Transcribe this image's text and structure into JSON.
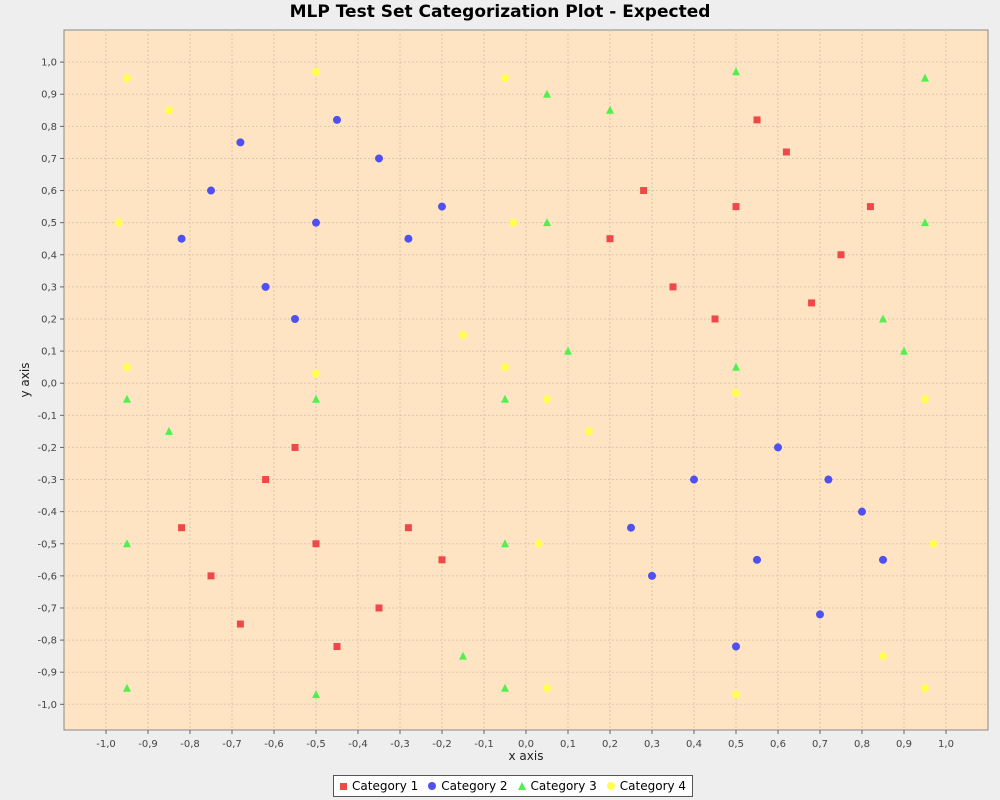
{
  "chart_data": {
    "type": "scatter",
    "title": "MLP Test Set Categorization Plot - Expected",
    "xlabel": "x axis",
    "ylabel": "y axis",
    "xlim": [
      -1.1,
      1.1
    ],
    "ylim": [
      -1.08,
      1.1
    ],
    "xticks": [
      -1.0,
      -0.9,
      -0.8,
      -0.7,
      -0.6,
      -0.5,
      -0.4,
      -0.3,
      -0.2,
      -0.1,
      0.0,
      0.1,
      0.2,
      0.3,
      0.4,
      0.5,
      0.6,
      0.7,
      0.8,
      0.9,
      1.0
    ],
    "yticks": [
      -1.0,
      -0.9,
      -0.8,
      -0.7,
      -0.6,
      -0.5,
      -0.4,
      -0.3,
      -0.2,
      -0.1,
      0.0,
      0.1,
      0.2,
      0.3,
      0.4,
      0.5,
      0.6,
      0.7,
      0.8,
      0.9,
      1.0
    ],
    "xtick_labels": [
      "-1,0",
      "-0,9",
      "-0,8",
      "-0,7",
      "-0,6",
      "-0,5",
      "-0,4",
      "-0,3",
      "-0,2",
      "-0,1",
      "0,0",
      "0,1",
      "0,2",
      "0,3",
      "0,4",
      "0,5",
      "0,6",
      "0,7",
      "0,8",
      "0,9",
      "1,0"
    ],
    "ytick_labels": [
      "-1,0",
      "-0,9",
      "-0,8",
      "-0,7",
      "-0,6",
      "-0,5",
      "-0,4",
      "-0,3",
      "-0,2",
      "-0,1",
      "0,0",
      "0,1",
      "0,2",
      "0,3",
      "0,4",
      "0,5",
      "0,6",
      "0,7",
      "0,8",
      "0,9",
      "1,0"
    ],
    "grid": true,
    "legend_position": "bottom",
    "plot_background": "#ffe4c4",
    "series": [
      {
        "name": "Category 1",
        "marker": "square",
        "color": "#f04848",
        "points": [
          [
            0.5,
            0.55
          ],
          [
            0.35,
            0.3
          ],
          [
            0.62,
            0.72
          ],
          [
            0.28,
            0.6
          ],
          [
            0.75,
            0.4
          ],
          [
            0.45,
            0.2
          ],
          [
            0.55,
            0.82
          ],
          [
            0.82,
            0.55
          ],
          [
            0.2,
            0.45
          ],
          [
            0.68,
            0.25
          ],
          [
            -0.5,
            -0.5
          ],
          [
            -0.35,
            -0.7
          ],
          [
            -0.62,
            -0.3
          ],
          [
            -0.28,
            -0.45
          ],
          [
            -0.75,
            -0.6
          ],
          [
            -0.45,
            -0.82
          ],
          [
            -0.55,
            -0.2
          ],
          [
            -0.82,
            -0.45
          ],
          [
            -0.2,
            -0.55
          ],
          [
            -0.68,
            -0.75
          ]
        ]
      },
      {
        "name": "Category 2",
        "marker": "circle",
        "color": "#5050f0",
        "points": [
          [
            -0.5,
            0.5
          ],
          [
            -0.35,
            0.7
          ],
          [
            -0.62,
            0.3
          ],
          [
            -0.28,
            0.45
          ],
          [
            -0.75,
            0.6
          ],
          [
            -0.45,
            0.82
          ],
          [
            -0.55,
            0.2
          ],
          [
            -0.82,
            0.45
          ],
          [
            -0.2,
            0.55
          ],
          [
            -0.68,
            0.75
          ],
          [
            0.55,
            -0.55
          ],
          [
            0.4,
            -0.3
          ],
          [
            0.7,
            -0.72
          ],
          [
            0.3,
            -0.6
          ],
          [
            0.8,
            -0.4
          ],
          [
            0.5,
            -0.82
          ],
          [
            0.6,
            -0.2
          ],
          [
            0.85,
            -0.55
          ],
          [
            0.25,
            -0.45
          ],
          [
            0.72,
            -0.3
          ]
        ]
      },
      {
        "name": "Category 3",
        "marker": "triangle",
        "color": "#50f050",
        "points": [
          [
            0.05,
            0.9
          ],
          [
            0.95,
            0.95
          ],
          [
            0.1,
            0.1
          ],
          [
            0.9,
            0.1
          ],
          [
            0.5,
            0.05
          ],
          [
            0.05,
            0.5
          ],
          [
            0.95,
            0.5
          ],
          [
            0.5,
            0.97
          ],
          [
            0.2,
            0.85
          ],
          [
            0.85,
            0.2
          ],
          [
            -0.95,
            -0.05
          ],
          [
            -0.05,
            -0.05
          ],
          [
            -0.95,
            -0.95
          ],
          [
            -0.05,
            -0.95
          ],
          [
            -0.5,
            -0.05
          ],
          [
            -0.5,
            -0.97
          ],
          [
            -0.95,
            -0.5
          ],
          [
            -0.05,
            -0.5
          ],
          [
            -0.15,
            -0.85
          ],
          [
            -0.85,
            -0.15
          ]
        ]
      },
      {
        "name": "Category 4",
        "marker": "circle",
        "color": "#ffff50",
        "points": [
          [
            -0.95,
            0.95
          ],
          [
            -0.05,
            0.95
          ],
          [
            -0.95,
            0.05
          ],
          [
            -0.05,
            0.05
          ],
          [
            -0.5,
            0.97
          ],
          [
            -0.5,
            0.03
          ],
          [
            -0.97,
            0.5
          ],
          [
            -0.03,
            0.5
          ],
          [
            -0.15,
            0.15
          ],
          [
            -0.85,
            0.85
          ],
          [
            0.05,
            -0.05
          ],
          [
            0.95,
            -0.05
          ],
          [
            0.05,
            -0.95
          ],
          [
            0.95,
            -0.95
          ],
          [
            0.5,
            -0.03
          ],
          [
            0.5,
            -0.97
          ],
          [
            0.03,
            -0.5
          ],
          [
            0.97,
            -0.5
          ],
          [
            0.15,
            -0.15
          ],
          [
            0.85,
            -0.85
          ]
        ]
      }
    ]
  }
}
